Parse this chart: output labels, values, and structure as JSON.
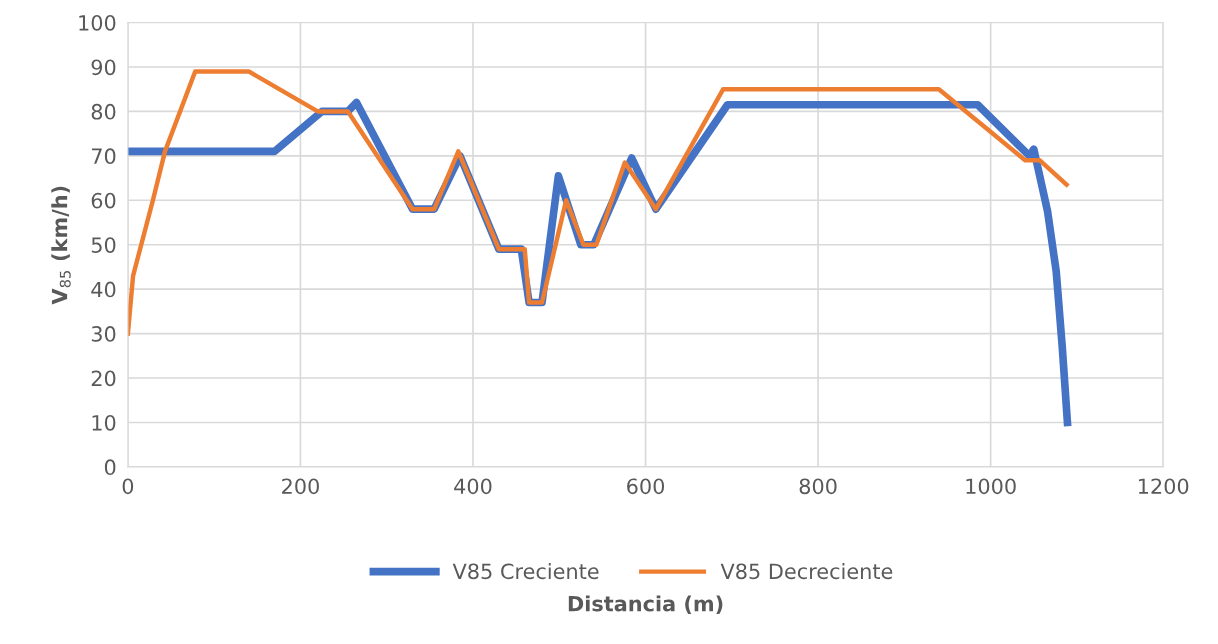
{
  "chart_data": {
    "type": "line",
    "xlabel": "Distancia (m)",
    "ylabel": "V$_{85}$ (km/h)",
    "xlim": [
      0,
      1200
    ],
    "xticks": [
      0,
      200,
      400,
      600,
      800,
      1000,
      1200
    ],
    "ylim": [
      0,
      100
    ],
    "yticks": [
      0,
      10,
      20,
      30,
      40,
      50,
      60,
      70,
      80,
      90,
      100
    ],
    "grid": true,
    "legend": "bottom",
    "marker": "none",
    "line_style": "solid",
    "series": [
      {
        "name": "V85 Creciente",
        "color": "#4472c4",
        "x": [
          0,
          170,
          225,
          255,
          265,
          330,
          355,
          385,
          430,
          456,
          465,
          480,
          499,
          525,
          540,
          584,
          612,
          695,
          985,
          1045,
          1050,
          1066,
          1076,
          1083,
          1089
        ],
        "values": [
          71,
          71,
          80,
          80,
          82,
          58,
          58,
          70,
          49,
          49,
          37,
          37,
          65.5,
          50,
          50,
          69.5,
          58,
          81.5,
          81.5,
          70,
          71.5,
          57.5,
          44,
          27,
          10
        ]
      },
      {
        "name": "V85 Decreciente",
        "color": "#ed7d31",
        "x": [
          0,
          6,
          29,
          43,
          78,
          140,
          220,
          255,
          330,
          355,
          383,
          430,
          460,
          465,
          480,
          508,
          528,
          543,
          576,
          612,
          690,
          940,
          1040,
          1057,
          1088
        ],
        "values": [
          30,
          43,
          60,
          71,
          89,
          89,
          80,
          80,
          58,
          58,
          71,
          49,
          49,
          37,
          37,
          60,
          50,
          50,
          68.5,
          58,
          85,
          85,
          69,
          69,
          63.5
        ]
      }
    ]
  }
}
